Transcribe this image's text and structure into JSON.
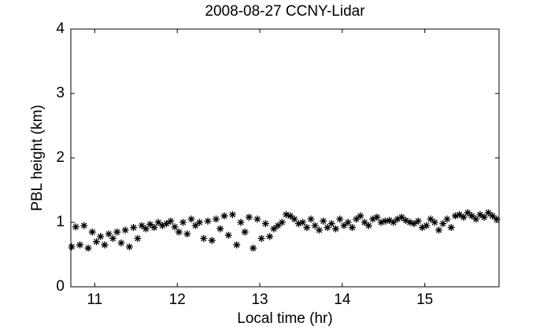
{
  "chart_data": {
    "type": "scatter",
    "title": "2008-08-27 CCNY-Lidar",
    "x_label": "Local time (hr)",
    "y_label": "PBL height (km)",
    "xlim": [
      10.71,
      15.9
    ],
    "ylim": [
      0,
      4
    ],
    "xticks": [
      11,
      12,
      13,
      14,
      15
    ],
    "yticks": [
      0,
      1,
      2,
      3,
      4
    ],
    "color": "#000000",
    "grid": false,
    "x": [
      10.72,
      10.77,
      10.82,
      10.87,
      10.92,
      10.97,
      11.02,
      11.07,
      11.12,
      11.17,
      11.22,
      11.27,
      11.32,
      11.37,
      11.42,
      11.47,
      11.52,
      11.57,
      11.62,
      11.67,
      11.72,
      11.77,
      11.82,
      11.87,
      11.92,
      11.97,
      12.02,
      12.07,
      12.12,
      12.17,
      12.22,
      12.27,
      12.32,
      12.37,
      12.42,
      12.47,
      12.52,
      12.57,
      12.62,
      12.67,
      12.72,
      12.77,
      12.82,
      12.87,
      12.92,
      12.97,
      13.02,
      13.07,
      13.12,
      13.17,
      13.22,
      13.27,
      13.32,
      13.37,
      13.42,
      13.47,
      13.52,
      13.57,
      13.62,
      13.67,
      13.72,
      13.77,
      13.82,
      13.87,
      13.92,
      13.97,
      14.02,
      14.07,
      14.12,
      14.17,
      14.22,
      14.27,
      14.32,
      14.37,
      14.42,
      14.47,
      14.52,
      14.57,
      14.62,
      14.67,
      14.72,
      14.77,
      14.82,
      14.87,
      14.92,
      14.97,
      15.02,
      15.07,
      15.12,
      15.17,
      15.22,
      15.27,
      15.32,
      15.37,
      15.42,
      15.47,
      15.52,
      15.57,
      15.62,
      15.67,
      15.72,
      15.77,
      15.82,
      15.87
    ],
    "values": [
      0.62,
      0.93,
      0.65,
      0.95,
      0.6,
      0.85,
      0.7,
      0.78,
      0.65,
      0.82,
      0.75,
      0.85,
      0.68,
      0.88,
      0.62,
      0.92,
      0.75,
      0.95,
      0.9,
      0.97,
      0.92,
      1.0,
      0.95,
      0.98,
      1.02,
      0.93,
      0.85,
      1.0,
      0.82,
      1.05,
      0.95,
      1.0,
      0.75,
      1.02,
      0.72,
      1.05,
      0.9,
      1.1,
      0.8,
      1.12,
      0.65,
      1.0,
      0.85,
      1.08,
      0.6,
      1.05,
      0.75,
      0.98,
      0.78,
      0.9,
      0.95,
      1.0,
      1.12,
      1.1,
      1.05,
      0.98,
      1.0,
      0.92,
      1.05,
      0.95,
      0.88,
      1.02,
      0.92,
      0.98,
      0.9,
      1.05,
      0.95,
      1.0,
      0.92,
      1.05,
      1.1,
      1.0,
      0.95,
      1.05,
      1.08,
      1.0,
      1.02,
      1.03,
      1.0,
      1.05,
      1.08,
      1.03,
      1.0,
      0.98,
      1.02,
      0.92,
      0.95,
      1.05,
      1.0,
      0.88,
      0.98,
      1.05,
      0.92,
      1.1,
      1.12,
      1.08,
      1.15,
      1.1,
      1.05,
      1.12,
      1.08,
      1.15,
      1.1,
      1.05
    ]
  }
}
